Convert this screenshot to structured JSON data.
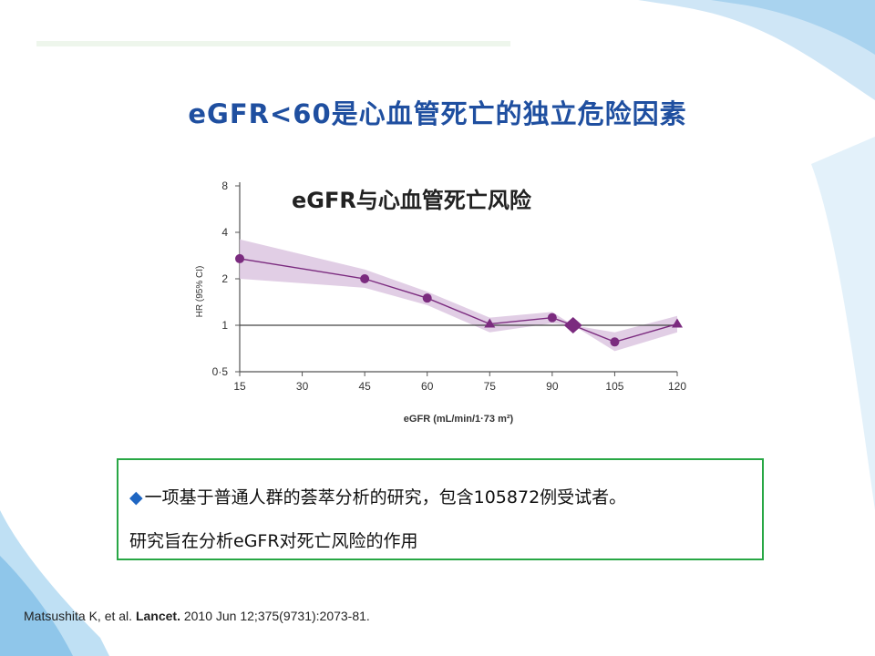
{
  "slide": {
    "title": "eGFR<60是心血管死亡的独立危险因素"
  },
  "note": {
    "bullet_icon": "diamond-bullet-icon",
    "line1": "一项基于普通人群的荟萃分析的研究，包含105872例受试者。",
    "line2": "研究旨在分析eGFR对死亡风险的作用"
  },
  "citation": {
    "authors": "Matsushita K, et al. ",
    "journal": "Lancet.",
    "details": " 2010 Jun 12;375(9731):2073-81."
  },
  "colors": {
    "title": "#1f4fa0",
    "series": "#7b2b7f",
    "band": "#dcc6e0",
    "box_border": "#28a745"
  },
  "chart_data": {
    "type": "line",
    "title": "eGFR与心血管死亡风险",
    "xlabel": "eGFR (mL/min/1·73 m²)",
    "ylabel": "HR (95% CI)",
    "y_scale": "log",
    "x_ticks": [
      "15",
      "30",
      "45",
      "60",
      "75",
      "90",
      "105",
      "120"
    ],
    "y_ticks": [
      "0·5",
      "1",
      "2",
      "4",
      "8"
    ],
    "xlim": [
      15,
      120
    ],
    "ylim": [
      0.5,
      8
    ],
    "reference_line": 1,
    "series": [
      {
        "points": [
          {
            "x": 15,
            "y": 2.7,
            "lo": 2.0,
            "hi": 3.6,
            "marker": "circle"
          },
          {
            "x": 45,
            "y": 2.0,
            "lo": 1.75,
            "hi": 2.3,
            "marker": "circle"
          },
          {
            "x": 60,
            "y": 1.5,
            "lo": 1.35,
            "hi": 1.65,
            "marker": "circle"
          },
          {
            "x": 75,
            "y": 1.02,
            "lo": 0.9,
            "hi": 1.12,
            "marker": "triangle"
          },
          {
            "x": 90,
            "y": 1.12,
            "lo": 1.03,
            "hi": 1.22,
            "marker": "circle"
          },
          {
            "x": 95,
            "y": 1.0,
            "lo": 1.0,
            "hi": 1.0,
            "marker": "diamond"
          },
          {
            "x": 105,
            "y": 0.78,
            "lo": 0.68,
            "hi": 0.9,
            "marker": "circle"
          },
          {
            "x": 120,
            "y": 1.02,
            "lo": 0.9,
            "hi": 1.15,
            "marker": "triangle"
          }
        ]
      }
    ]
  }
}
